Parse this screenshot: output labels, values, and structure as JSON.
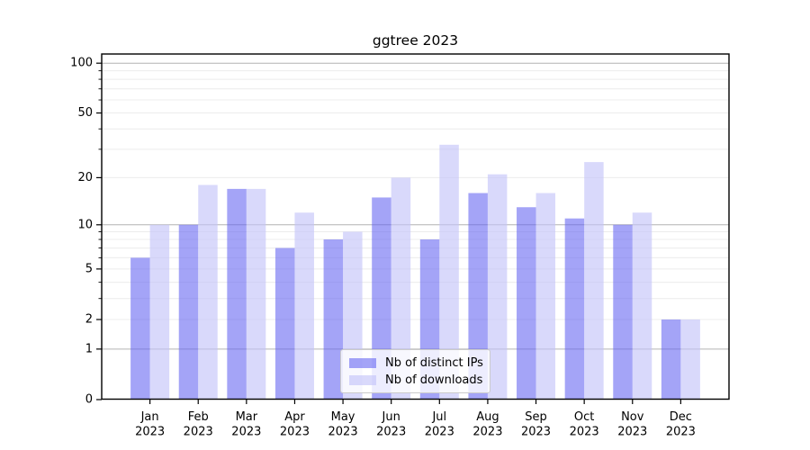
{
  "title": "ggtree 2023",
  "chart_data": {
    "type": "bar",
    "title": "ggtree 2023",
    "categories": [
      "Jan",
      "Feb",
      "Mar",
      "Apr",
      "May",
      "Jun",
      "Jul",
      "Aug",
      "Sep",
      "Oct",
      "Nov",
      "Dec"
    ],
    "x_year_label": "2023",
    "series": [
      {
        "name": "Nb of distinct IPs",
        "values": [
          6,
          10,
          17,
          7,
          8,
          15,
          8,
          16,
          13,
          11,
          10,
          2
        ]
      },
      {
        "name": "Nb of downloads",
        "values": [
          10,
          18,
          17,
          12,
          9,
          20,
          32,
          21,
          16,
          25,
          12,
          2
        ]
      }
    ],
    "yscale": "log10(value+1)",
    "ylim": [
      0,
      114
    ],
    "yticks_labeled": [
      0,
      1,
      2,
      5,
      10,
      20,
      50,
      100
    ],
    "yticks_minor": [
      3,
      4,
      6,
      7,
      8,
      9,
      30,
      40,
      60,
      70,
      80,
      90
    ],
    "gridlines_major": [
      1,
      10,
      100
    ],
    "gridlines_minor": [
      2,
      3,
      4,
      5,
      6,
      7,
      8,
      9,
      20,
      30,
      40,
      50,
      60,
      70,
      80,
      90
    ],
    "legend_position": "lower center",
    "grid": true
  },
  "legend": {
    "items": [
      {
        "label": "Nb of distinct IPs"
      },
      {
        "label": "Nb of downloads"
      }
    ]
  },
  "colors": {
    "bar_distinct_ips": "rgba(98,98,242,0.58)",
    "bar_downloads": "rgba(193,193,249,0.62)",
    "grid_major": "#b3b3b3",
    "grid_minor": "#ececec",
    "spine": "#000000",
    "text": "#000000",
    "legend_border": "#cbcbcb"
  }
}
